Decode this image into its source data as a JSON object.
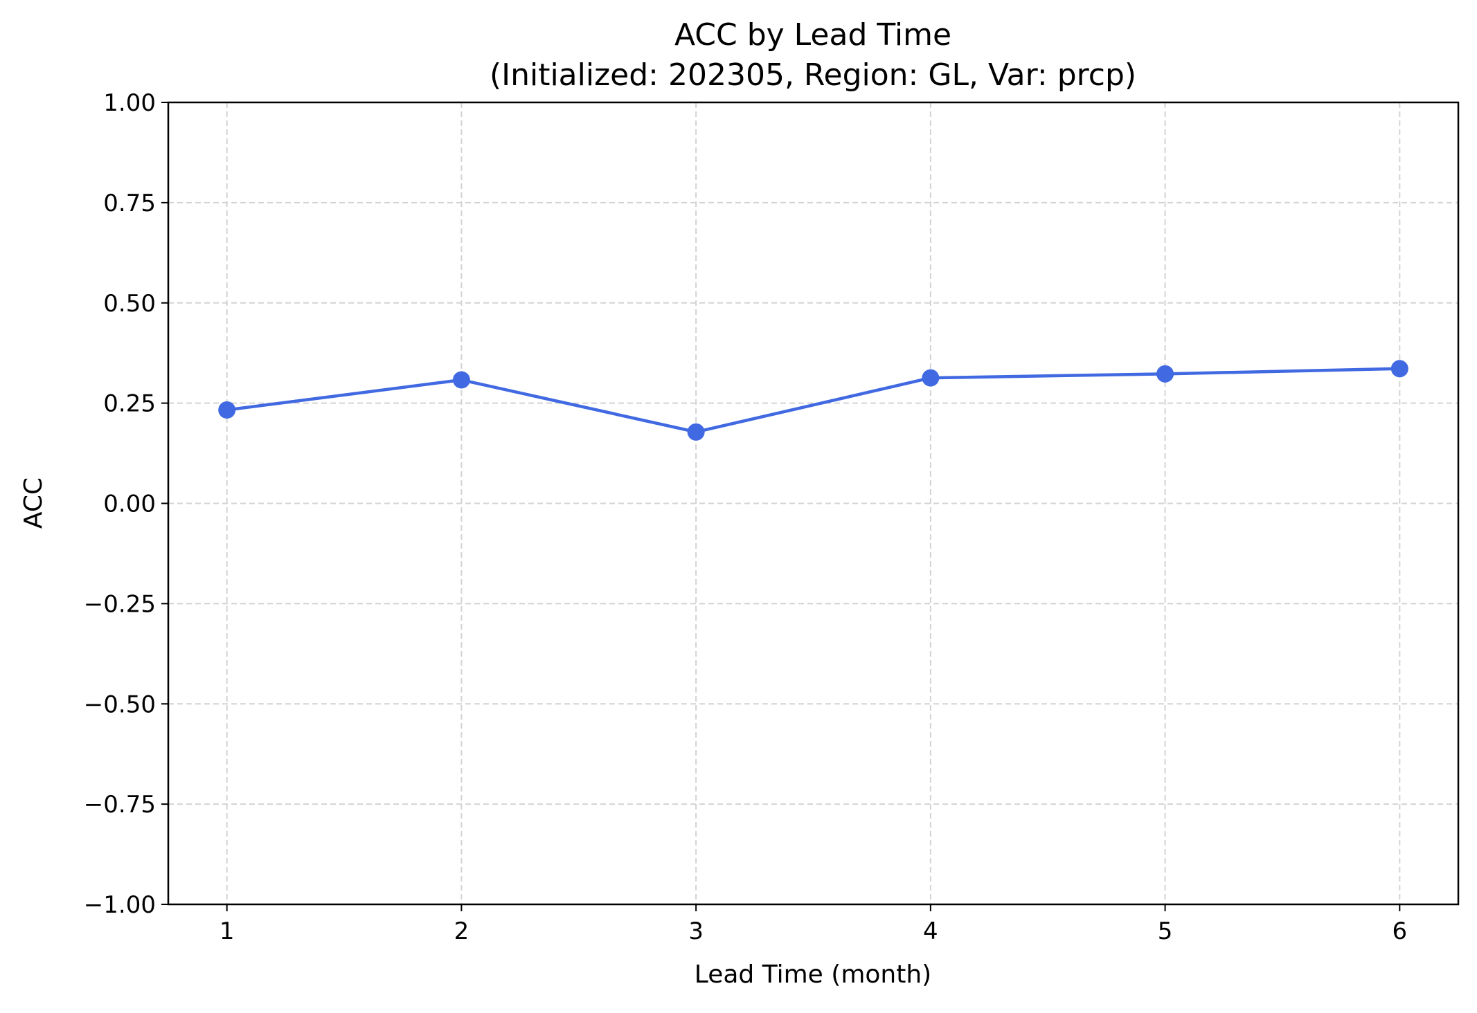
{
  "chart_data": {
    "type": "line",
    "title": "ACC by Lead Time",
    "subtitle": "(Initialized: 202305, Region: GL, Var: prcp)",
    "xlabel": "Lead Time (month)",
    "ylabel": "ACC",
    "x": [
      1,
      2,
      3,
      4,
      5,
      6
    ],
    "x_tick_labels": [
      "1",
      "2",
      "3",
      "4",
      "5",
      "6"
    ],
    "xlim": [
      0.75,
      6.25
    ],
    "ylim": [
      -1.0,
      1.0
    ],
    "y_ticks": [
      -1.0,
      -0.75,
      -0.5,
      -0.25,
      0.0,
      0.25,
      0.5,
      0.75,
      1.0
    ],
    "y_tick_labels": [
      "−1.00",
      "−0.75",
      "−0.50",
      "−0.25",
      "0.00",
      "0.25",
      "0.50",
      "0.75",
      "1.00"
    ],
    "series": [
      {
        "values": [
          0.233,
          0.308,
          0.178,
          0.313,
          0.323,
          0.336
        ],
        "color": "#4169e1"
      }
    ],
    "grid": true,
    "grid_style": "dashed",
    "legend": "none"
  }
}
